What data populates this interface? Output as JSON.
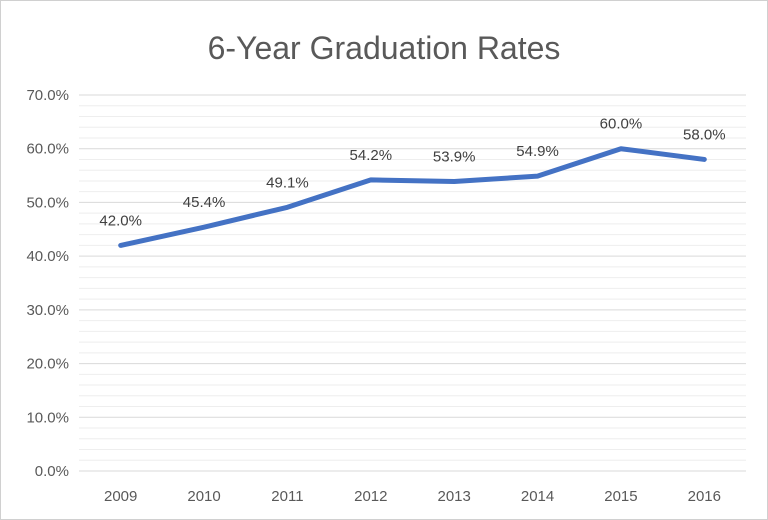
{
  "chart_data": {
    "type": "line",
    "title": "6-Year Graduation Rates",
    "xlabel": "",
    "ylabel": "",
    "categories": [
      "2009",
      "2010",
      "2011",
      "2012",
      "2013",
      "2014",
      "2015",
      "2016"
    ],
    "series": [
      {
        "values": [
          42.0,
          45.4,
          49.1,
          54.2,
          53.9,
          54.9,
          60.0,
          58.0
        ],
        "data_labels": [
          "42.0%",
          "45.4%",
          "49.1%",
          "54.2%",
          "53.9%",
          "54.9%",
          "60.0%",
          "58.0%"
        ],
        "color": "#4472C4"
      }
    ],
    "ylim": [
      0,
      70
    ],
    "yticks": [
      {
        "value": 0,
        "label": "0.0%"
      },
      {
        "value": 10,
        "label": "10.0%"
      },
      {
        "value": 20,
        "label": "20.0%"
      },
      {
        "value": 30,
        "label": "30.0%"
      },
      {
        "value": 40,
        "label": "40.0%"
      },
      {
        "value": 50,
        "label": "50.0%"
      },
      {
        "value": 60,
        "label": "60.0%"
      },
      {
        "value": 70,
        "label": "70.0%"
      }
    ],
    "minor_grid_step": 2,
    "grid": true,
    "legend": "none"
  }
}
